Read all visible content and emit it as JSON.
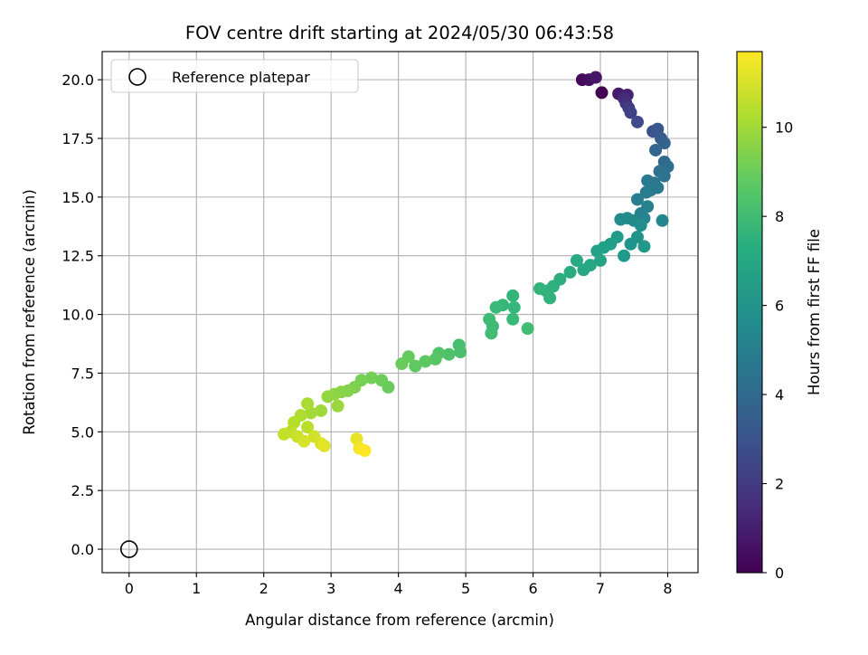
{
  "chart_data": {
    "type": "scatter",
    "title": "FOV centre drift starting at 2024/05/30 06:43:58",
    "xlabel": "Angular distance from reference (arcmin)",
    "ylabel": "Rotation from reference (arcmin)",
    "xlim": [
      -0.4,
      8.45
    ],
    "ylim": [
      -1.0,
      21.2
    ],
    "xticks": [
      "0",
      "1",
      "2",
      "3",
      "4",
      "5",
      "6",
      "7",
      "8"
    ],
    "yticks": [
      "0.0",
      "2.5",
      "5.0",
      "7.5",
      "10.0",
      "12.5",
      "15.0",
      "17.5",
      "20.0"
    ],
    "grid": true,
    "legend": {
      "placement": "top-left",
      "entries": [
        "Reference platepar"
      ]
    },
    "reference_point": {
      "x": 0,
      "y": 0,
      "label": "Reference platepar"
    },
    "colorbar": {
      "label": "Hours from first FF file",
      "colormap": "viridis",
      "range": [
        0,
        11.7
      ],
      "ticks": [
        "0",
        "2",
        "4",
        "6",
        "8",
        "10"
      ]
    },
    "series": [
      {
        "points": [
          [
            7.02,
            19.45,
            0.0
          ],
          [
            6.73,
            20.0,
            0.3
          ],
          [
            6.83,
            20.0,
            0.5
          ],
          [
            6.93,
            20.1,
            0.7
          ],
          [
            7.27,
            19.4,
            0.9
          ],
          [
            7.4,
            19.35,
            1.1
          ],
          [
            7.35,
            19.2,
            1.4
          ],
          [
            7.38,
            19.0,
            1.7
          ],
          [
            7.42,
            18.8,
            2.0
          ],
          [
            7.45,
            18.6,
            2.3
          ],
          [
            7.55,
            18.2,
            2.6
          ],
          [
            7.78,
            17.8,
            3.0
          ],
          [
            7.85,
            17.9,
            3.2
          ],
          [
            7.9,
            17.5,
            3.4
          ],
          [
            7.95,
            17.3,
            3.6
          ],
          [
            7.82,
            17.0,
            3.8
          ],
          [
            7.95,
            16.5,
            4.0
          ],
          [
            8.0,
            16.3,
            4.2
          ],
          [
            7.88,
            16.1,
            4.3
          ],
          [
            7.95,
            15.9,
            4.4
          ],
          [
            7.8,
            15.6,
            4.5
          ],
          [
            7.75,
            15.3,
            4.6
          ],
          [
            7.85,
            15.4,
            4.7
          ],
          [
            7.7,
            15.7,
            4.8
          ],
          [
            7.68,
            15.2,
            4.9
          ],
          [
            7.55,
            14.9,
            5.0
          ],
          [
            7.7,
            14.6,
            5.1
          ],
          [
            7.6,
            14.3,
            5.2
          ],
          [
            7.65,
            14.1,
            5.3
          ],
          [
            7.92,
            14.0,
            5.4
          ],
          [
            7.5,
            14.0,
            5.5
          ],
          [
            7.4,
            14.1,
            5.6
          ],
          [
            7.3,
            14.05,
            5.7
          ],
          [
            7.6,
            13.8,
            5.8
          ],
          [
            7.55,
            13.3,
            6.0
          ],
          [
            7.45,
            13.0,
            6.1
          ],
          [
            7.65,
            12.9,
            6.2
          ],
          [
            7.35,
            12.5,
            6.3
          ],
          [
            7.25,
            13.3,
            6.4
          ],
          [
            7.15,
            13.0,
            6.5
          ],
          [
            7.05,
            12.85,
            6.6
          ],
          [
            6.95,
            12.7,
            6.7
          ],
          [
            7.0,
            12.3,
            6.8
          ],
          [
            6.85,
            12.1,
            6.9
          ],
          [
            6.75,
            11.9,
            7.0
          ],
          [
            6.65,
            12.3,
            7.1
          ],
          [
            6.55,
            11.8,
            7.2
          ],
          [
            6.4,
            11.5,
            7.3
          ],
          [
            6.3,
            11.2,
            7.4
          ],
          [
            6.2,
            11.0,
            7.5
          ],
          [
            6.25,
            10.7,
            7.6
          ],
          [
            6.1,
            11.1,
            7.6
          ],
          [
            5.7,
            10.8,
            7.7
          ],
          [
            5.72,
            10.3,
            7.8
          ],
          [
            5.55,
            10.4,
            7.8
          ],
          [
            5.45,
            10.3,
            7.9
          ],
          [
            5.7,
            9.8,
            7.9
          ],
          [
            5.35,
            9.8,
            8.0
          ],
          [
            5.4,
            9.5,
            8.0
          ],
          [
            5.38,
            9.2,
            8.1
          ],
          [
            5.92,
            9.4,
            8.1
          ],
          [
            4.9,
            8.7,
            8.2
          ],
          [
            4.92,
            8.4,
            8.3
          ],
          [
            4.75,
            8.3,
            8.4
          ],
          [
            4.6,
            8.35,
            8.5
          ],
          [
            4.55,
            8.1,
            8.6
          ],
          [
            4.4,
            8.0,
            8.7
          ],
          [
            4.25,
            7.8,
            8.8
          ],
          [
            4.15,
            8.2,
            8.9
          ],
          [
            4.05,
            7.9,
            9.0
          ],
          [
            3.85,
            6.9,
            9.0
          ],
          [
            3.75,
            7.2,
            9.1
          ],
          [
            3.6,
            7.3,
            9.2
          ],
          [
            3.45,
            7.2,
            9.3
          ],
          [
            3.35,
            6.9,
            9.4
          ],
          [
            3.25,
            6.75,
            9.5
          ],
          [
            3.15,
            6.7,
            9.6
          ],
          [
            3.05,
            6.6,
            9.7
          ],
          [
            2.95,
            6.5,
            9.8
          ],
          [
            3.1,
            6.1,
            9.9
          ],
          [
            2.85,
            5.9,
            10.0
          ],
          [
            2.7,
            5.8,
            10.1
          ],
          [
            2.65,
            6.2,
            10.2
          ],
          [
            2.55,
            5.7,
            10.3
          ],
          [
            2.45,
            5.4,
            10.4
          ],
          [
            2.65,
            5.2,
            10.5
          ],
          [
            2.4,
            5.0,
            10.6
          ],
          [
            2.3,
            4.9,
            10.7
          ],
          [
            2.5,
            4.8,
            10.8
          ],
          [
            2.75,
            4.8,
            10.9
          ],
          [
            2.6,
            4.6,
            11.0
          ],
          [
            2.85,
            4.5,
            11.1
          ],
          [
            2.9,
            4.4,
            11.2
          ],
          [
            3.38,
            4.7,
            11.3
          ],
          [
            3.42,
            4.3,
            11.5
          ],
          [
            3.5,
            4.2,
            11.7
          ]
        ]
      }
    ]
  }
}
